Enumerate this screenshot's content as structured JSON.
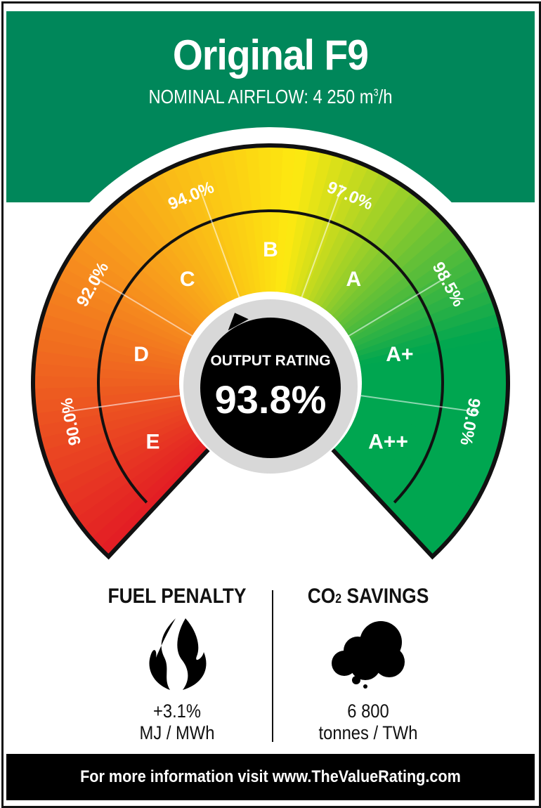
{
  "header": {
    "title": "Original F9",
    "subtitle_prefix": "NOMINAL AIRFLOW: 4 250 m",
    "subtitle_sup": "3",
    "subtitle_suffix": "/h"
  },
  "gauge": {
    "thresholds": [
      "90.0%",
      "92.0%",
      "94.0%",
      "97.0%",
      "98.5%",
      "99.0%"
    ],
    "classes": [
      "E",
      "D",
      "C",
      "B",
      "A",
      "A+",
      "A++"
    ],
    "center_label": "OUTPUT RATING",
    "center_value": "93.8%",
    "colors": {
      "red": "#e31e24",
      "orange": "#f7941d",
      "yellow": "#fde910",
      "green": "#00a650"
    }
  },
  "fuel": {
    "title": "FUEL PENALTY",
    "value": "+3.1%",
    "unit": "MJ / MWh",
    "icon": "flame-icon"
  },
  "co2": {
    "title_prefix": "CO",
    "title_sub": "2",
    "title_suffix": " SAVINGS",
    "value": "6 800",
    "unit": "tonnes / TWh",
    "icon": "cloud-icon"
  },
  "footer": {
    "text": "For more information visit www.TheValueRating.com"
  }
}
